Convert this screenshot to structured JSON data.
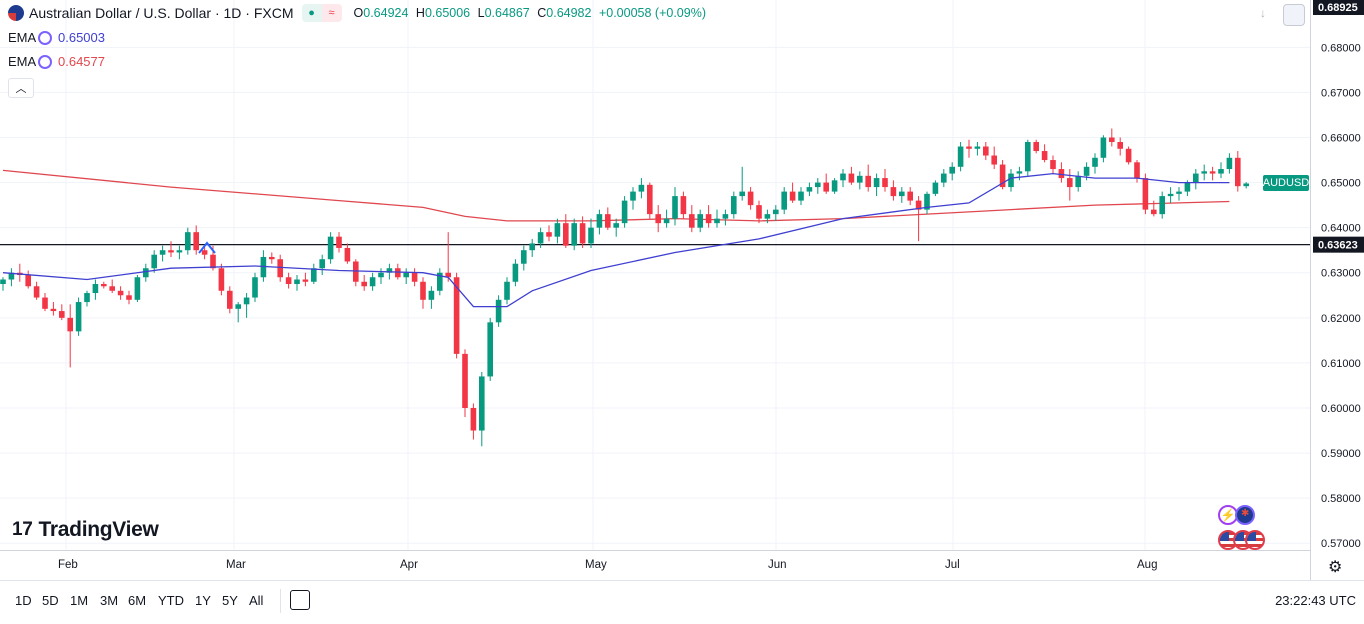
{
  "header": {
    "title": "Australian Dollar / U.S. Dollar · 1D · FXCM",
    "ohlc": {
      "o_label": "O",
      "o": "0.64924",
      "h_label": "H",
      "h": "0.65006",
      "l_label": "L",
      "l": "0.64867",
      "c_label": "C",
      "c": "0.64982",
      "change": "+0.00058 (+0.09%)"
    }
  },
  "indicators": [
    {
      "label": "EMA",
      "value": "0.65003",
      "color": "#3f3fd1"
    },
    {
      "label": "EMA",
      "value": "0.64577",
      "color": "#e0474f"
    }
  ],
  "price_scale": {
    "top_label": "0.68925",
    "ticks": [
      "0.68000",
      "0.67000",
      "0.66000",
      "0.65000",
      "0.64000",
      "0.63000",
      "0.62000",
      "0.61000",
      "0.60000",
      "0.59000",
      "0.58000",
      "0.57000"
    ],
    "symbol_badge": "AUDUSD",
    "hline_label": "0.63623"
  },
  "time_axis": {
    "labels": [
      "Feb",
      "Mar",
      "Apr",
      "May",
      "Jun",
      "Jul",
      "Aug"
    ]
  },
  "bottom_bar": {
    "ranges": [
      "1D",
      "5D",
      "1M",
      "3M",
      "6M",
      "YTD",
      "1Y",
      "5Y",
      "All"
    ],
    "clock": "23:22:43 UTC"
  },
  "branding": {
    "logo_text": "TradingView"
  },
  "colors": {
    "up": "#089981",
    "down": "#f23645",
    "ema_fast": "#3f3fd1",
    "ema_slow": "#e0474f",
    "hline": "#131722",
    "grid": "#f0f3fa"
  },
  "chart_data": {
    "type": "candlestick",
    "symbol": "AUDUSD",
    "interval": "1D",
    "ylim": [
      0.5685,
      0.6905
    ],
    "horizontal_line": 0.63623,
    "candles": [
      [
        0.6275,
        0.629,
        0.626,
        0.6285
      ],
      [
        0.6285,
        0.631,
        0.627,
        0.63
      ],
      [
        0.63,
        0.632,
        0.628,
        0.6295
      ],
      [
        0.6295,
        0.6305,
        0.6265,
        0.627
      ],
      [
        0.627,
        0.628,
        0.624,
        0.6245
      ],
      [
        0.6245,
        0.6255,
        0.6215,
        0.622
      ],
      [
        0.622,
        0.6235,
        0.6205,
        0.6215
      ],
      [
        0.6215,
        0.623,
        0.6195,
        0.62
      ],
      [
        0.62,
        0.623,
        0.609,
        0.617
      ],
      [
        0.617,
        0.6245,
        0.616,
        0.6235
      ],
      [
        0.6235,
        0.626,
        0.6225,
        0.6255
      ],
      [
        0.6255,
        0.6285,
        0.624,
        0.6275
      ],
      [
        0.6275,
        0.628,
        0.6265,
        0.627
      ],
      [
        0.627,
        0.6285,
        0.6255,
        0.626
      ],
      [
        0.626,
        0.627,
        0.624,
        0.625
      ],
      [
        0.625,
        0.626,
        0.623,
        0.624
      ],
      [
        0.624,
        0.6295,
        0.6235,
        0.629
      ],
      [
        0.629,
        0.632,
        0.628,
        0.631
      ],
      [
        0.631,
        0.635,
        0.63,
        0.634
      ],
      [
        0.634,
        0.636,
        0.6325,
        0.635
      ],
      [
        0.635,
        0.637,
        0.6335,
        0.6345
      ],
      [
        0.6345,
        0.636,
        0.633,
        0.635
      ],
      [
        0.635,
        0.64,
        0.634,
        0.639
      ],
      [
        0.639,
        0.6405,
        0.634,
        0.635
      ],
      [
        0.635,
        0.636,
        0.633,
        0.634
      ],
      [
        0.634,
        0.636,
        0.6305,
        0.631
      ],
      [
        0.631,
        0.632,
        0.625,
        0.626
      ],
      [
        0.626,
        0.627,
        0.621,
        0.622
      ],
      [
        0.622,
        0.6235,
        0.619,
        0.623
      ],
      [
        0.623,
        0.6255,
        0.62,
        0.6245
      ],
      [
        0.6245,
        0.63,
        0.6235,
        0.629
      ],
      [
        0.629,
        0.635,
        0.628,
        0.6335
      ],
      [
        0.6335,
        0.6345,
        0.632,
        0.633
      ],
      [
        0.633,
        0.634,
        0.628,
        0.629
      ],
      [
        0.629,
        0.63,
        0.6265,
        0.6275
      ],
      [
        0.6275,
        0.6295,
        0.626,
        0.6285
      ],
      [
        0.6285,
        0.63,
        0.627,
        0.628
      ],
      [
        0.628,
        0.632,
        0.6275,
        0.631
      ],
      [
        0.631,
        0.634,
        0.6295,
        0.633
      ],
      [
        0.633,
        0.639,
        0.632,
        0.638
      ],
      [
        0.638,
        0.639,
        0.6345,
        0.6355
      ],
      [
        0.6355,
        0.6365,
        0.632,
        0.6325
      ],
      [
        0.6325,
        0.633,
        0.627,
        0.628
      ],
      [
        0.628,
        0.6295,
        0.626,
        0.627
      ],
      [
        0.627,
        0.63,
        0.626,
        0.629
      ],
      [
        0.629,
        0.631,
        0.6275,
        0.63
      ],
      [
        0.63,
        0.632,
        0.6285,
        0.631
      ],
      [
        0.631,
        0.632,
        0.6285,
        0.629
      ],
      [
        0.629,
        0.631,
        0.6275,
        0.63
      ],
      [
        0.63,
        0.631,
        0.627,
        0.628
      ],
      [
        0.628,
        0.629,
        0.622,
        0.624
      ],
      [
        0.624,
        0.627,
        0.622,
        0.626
      ],
      [
        0.626,
        0.631,
        0.625,
        0.63
      ],
      [
        0.63,
        0.639,
        0.628,
        0.629
      ],
      [
        0.629,
        0.63,
        0.611,
        0.612
      ],
      [
        0.612,
        0.613,
        0.598,
        0.6
      ],
      [
        0.6,
        0.601,
        0.593,
        0.595
      ],
      [
        0.595,
        0.608,
        0.5915,
        0.607
      ],
      [
        0.607,
        0.62,
        0.606,
        0.619
      ],
      [
        0.619,
        0.625,
        0.618,
        0.624
      ],
      [
        0.624,
        0.629,
        0.623,
        0.628
      ],
      [
        0.628,
        0.633,
        0.627,
        0.632
      ],
      [
        0.632,
        0.636,
        0.6305,
        0.635
      ],
      [
        0.635,
        0.6375,
        0.6335,
        0.6365
      ],
      [
        0.6365,
        0.64,
        0.6355,
        0.639
      ],
      [
        0.639,
        0.6405,
        0.637,
        0.638
      ],
      [
        0.638,
        0.642,
        0.6365,
        0.641
      ],
      [
        0.641,
        0.643,
        0.6355,
        0.636
      ],
      [
        0.636,
        0.642,
        0.635,
        0.641
      ],
      [
        0.641,
        0.6425,
        0.6355,
        0.6365
      ],
      [
        0.6365,
        0.642,
        0.6355,
        0.64
      ],
      [
        0.64,
        0.644,
        0.6385,
        0.643
      ],
      [
        0.643,
        0.6445,
        0.6395,
        0.64
      ],
      [
        0.64,
        0.642,
        0.638,
        0.641
      ],
      [
        0.641,
        0.647,
        0.64,
        0.646
      ],
      [
        0.646,
        0.649,
        0.644,
        0.648
      ],
      [
        0.648,
        0.651,
        0.6465,
        0.6495
      ],
      [
        0.6495,
        0.65,
        0.642,
        0.643
      ],
      [
        0.643,
        0.645,
        0.639,
        0.641
      ],
      [
        0.641,
        0.644,
        0.64,
        0.642
      ],
      [
        0.642,
        0.649,
        0.6405,
        0.647
      ],
      [
        0.647,
        0.648,
        0.642,
        0.643
      ],
      [
        0.643,
        0.645,
        0.639,
        0.64
      ],
      [
        0.64,
        0.644,
        0.639,
        0.643
      ],
      [
        0.643,
        0.645,
        0.64,
        0.641
      ],
      [
        0.641,
        0.644,
        0.64,
        0.642
      ],
      [
        0.642,
        0.644,
        0.6405,
        0.643
      ],
      [
        0.643,
        0.648,
        0.642,
        0.647
      ],
      [
        0.647,
        0.6535,
        0.646,
        0.648
      ],
      [
        0.648,
        0.649,
        0.644,
        0.645
      ],
      [
        0.645,
        0.646,
        0.641,
        0.642
      ],
      [
        0.642,
        0.644,
        0.641,
        0.643
      ],
      [
        0.643,
        0.645,
        0.6415,
        0.644
      ],
      [
        0.644,
        0.649,
        0.643,
        0.648
      ],
      [
        0.648,
        0.65,
        0.6455,
        0.646
      ],
      [
        0.646,
        0.649,
        0.645,
        0.648
      ],
      [
        0.648,
        0.65,
        0.647,
        0.649
      ],
      [
        0.649,
        0.651,
        0.6475,
        0.65
      ],
      [
        0.65,
        0.652,
        0.6475,
        0.648
      ],
      [
        0.648,
        0.651,
        0.6475,
        0.6505
      ],
      [
        0.6505,
        0.653,
        0.649,
        0.652
      ],
      [
        0.652,
        0.6535,
        0.6495,
        0.65
      ],
      [
        0.65,
        0.6525,
        0.6485,
        0.6515
      ],
      [
        0.6515,
        0.654,
        0.648,
        0.649
      ],
      [
        0.649,
        0.652,
        0.647,
        0.651
      ],
      [
        0.651,
        0.653,
        0.648,
        0.649
      ],
      [
        0.649,
        0.6505,
        0.646,
        0.647
      ],
      [
        0.647,
        0.649,
        0.6455,
        0.648
      ],
      [
        0.648,
        0.649,
        0.645,
        0.646
      ],
      [
        0.646,
        0.647,
        0.637,
        0.644
      ],
      [
        0.644,
        0.648,
        0.643,
        0.6475
      ],
      [
        0.6475,
        0.6505,
        0.647,
        0.65
      ],
      [
        0.65,
        0.653,
        0.649,
        0.652
      ],
      [
        0.652,
        0.6545,
        0.6505,
        0.6535
      ],
      [
        0.6535,
        0.659,
        0.6525,
        0.658
      ],
      [
        0.658,
        0.6595,
        0.6555,
        0.6575
      ],
      [
        0.6575,
        0.659,
        0.656,
        0.658
      ],
      [
        0.658,
        0.659,
        0.655,
        0.656
      ],
      [
        0.656,
        0.658,
        0.653,
        0.654
      ],
      [
        0.654,
        0.655,
        0.6485,
        0.649
      ],
      [
        0.649,
        0.653,
        0.648,
        0.652
      ],
      [
        0.652,
        0.6535,
        0.6505,
        0.6525
      ],
      [
        0.6525,
        0.6595,
        0.6515,
        0.659
      ],
      [
        0.659,
        0.6595,
        0.6565,
        0.657
      ],
      [
        0.657,
        0.6585,
        0.6545,
        0.655
      ],
      [
        0.655,
        0.656,
        0.652,
        0.653
      ],
      [
        0.653,
        0.6545,
        0.65,
        0.651
      ],
      [
        0.651,
        0.653,
        0.646,
        0.649
      ],
      [
        0.649,
        0.6525,
        0.648,
        0.6515
      ],
      [
        0.6515,
        0.6545,
        0.6505,
        0.6535
      ],
      [
        0.6535,
        0.6565,
        0.652,
        0.6555
      ],
      [
        0.6555,
        0.6605,
        0.6545,
        0.66
      ],
      [
        0.66,
        0.662,
        0.658,
        0.659
      ],
      [
        0.659,
        0.66,
        0.656,
        0.6575
      ],
      [
        0.6575,
        0.658,
        0.654,
        0.6545
      ],
      [
        0.6545,
        0.655,
        0.65,
        0.651
      ],
      [
        0.651,
        0.652,
        0.643,
        0.644
      ],
      [
        0.644,
        0.646,
        0.6425,
        0.643
      ],
      [
        0.643,
        0.648,
        0.642,
        0.647
      ],
      [
        0.647,
        0.649,
        0.6455,
        0.6475
      ],
      [
        0.6475,
        0.649,
        0.646,
        0.648
      ],
      [
        0.648,
        0.6505,
        0.647,
        0.65
      ],
      [
        0.65,
        0.653,
        0.6485,
        0.652
      ],
      [
        0.652,
        0.654,
        0.6505,
        0.6525
      ],
      [
        0.6525,
        0.6535,
        0.6505,
        0.652
      ],
      [
        0.652,
        0.6545,
        0.651,
        0.653
      ],
      [
        0.653,
        0.6565,
        0.652,
        0.6555
      ],
      [
        0.6555,
        0.657,
        0.648,
        0.6492
      ],
      [
        0.6492,
        0.6501,
        0.6487,
        0.6498
      ]
    ],
    "ema_fast": [
      [
        0,
        0.63
      ],
      [
        10,
        0.6285
      ],
      [
        20,
        0.631
      ],
      [
        30,
        0.6315
      ],
      [
        40,
        0.6305
      ],
      [
        50,
        0.63
      ],
      [
        53,
        0.629
      ],
      [
        56,
        0.6225
      ],
      [
        60,
        0.6225
      ],
      [
        63,
        0.626
      ],
      [
        70,
        0.6305
      ],
      [
        80,
        0.6345
      ],
      [
        90,
        0.6375
      ],
      [
        100,
        0.642
      ],
      [
        110,
        0.6445
      ],
      [
        115,
        0.6455
      ],
      [
        120,
        0.651
      ],
      [
        125,
        0.652
      ],
      [
        130,
        0.651
      ],
      [
        135,
        0.651
      ],
      [
        140,
        0.65
      ],
      [
        146,
        0.65
      ]
    ],
    "ema_slow": [
      [
        0,
        0.6527
      ],
      [
        20,
        0.649
      ],
      [
        40,
        0.646
      ],
      [
        50,
        0.6445
      ],
      [
        55,
        0.6425
      ],
      [
        60,
        0.6415
      ],
      [
        70,
        0.6415
      ],
      [
        80,
        0.642
      ],
      [
        90,
        0.6415
      ],
      [
        100,
        0.642
      ],
      [
        110,
        0.643
      ],
      [
        120,
        0.644
      ],
      [
        130,
        0.645
      ],
      [
        140,
        0.6455
      ],
      [
        146,
        0.6458
      ]
    ]
  }
}
